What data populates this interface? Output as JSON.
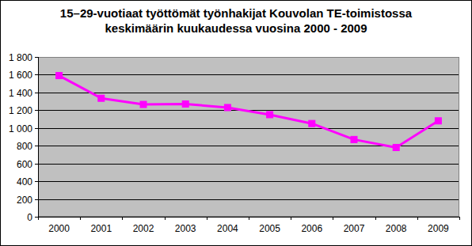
{
  "chart_data": {
    "type": "line",
    "title": "15–29-vuotiaat työttömät työnhakijat Kouvolan TE-toimistossa keskimäärin kuukaudessa vuosina 2000 - 2009",
    "categories": [
      "2000",
      "2001",
      "2002",
      "2003",
      "2004",
      "2005",
      "2006",
      "2007",
      "2008",
      "2009"
    ],
    "values": [
      1590,
      1335,
      1265,
      1270,
      1230,
      1150,
      1050,
      870,
      780,
      1080
    ],
    "color": "#ff00ff",
    "marker": "square",
    "ylim": [
      0,
      1800
    ],
    "yticks": [
      0,
      200,
      400,
      600,
      800,
      {
        "value": 1000,
        "label": "1 000"
      },
      {
        "value": 1200,
        "label": "1 200"
      },
      {
        "value": 1400,
        "label": "1 400"
      },
      {
        "value": 1600,
        "label": "1 600"
      },
      {
        "value": 1800,
        "label": "1 800"
      }
    ],
    "grid": true
  }
}
